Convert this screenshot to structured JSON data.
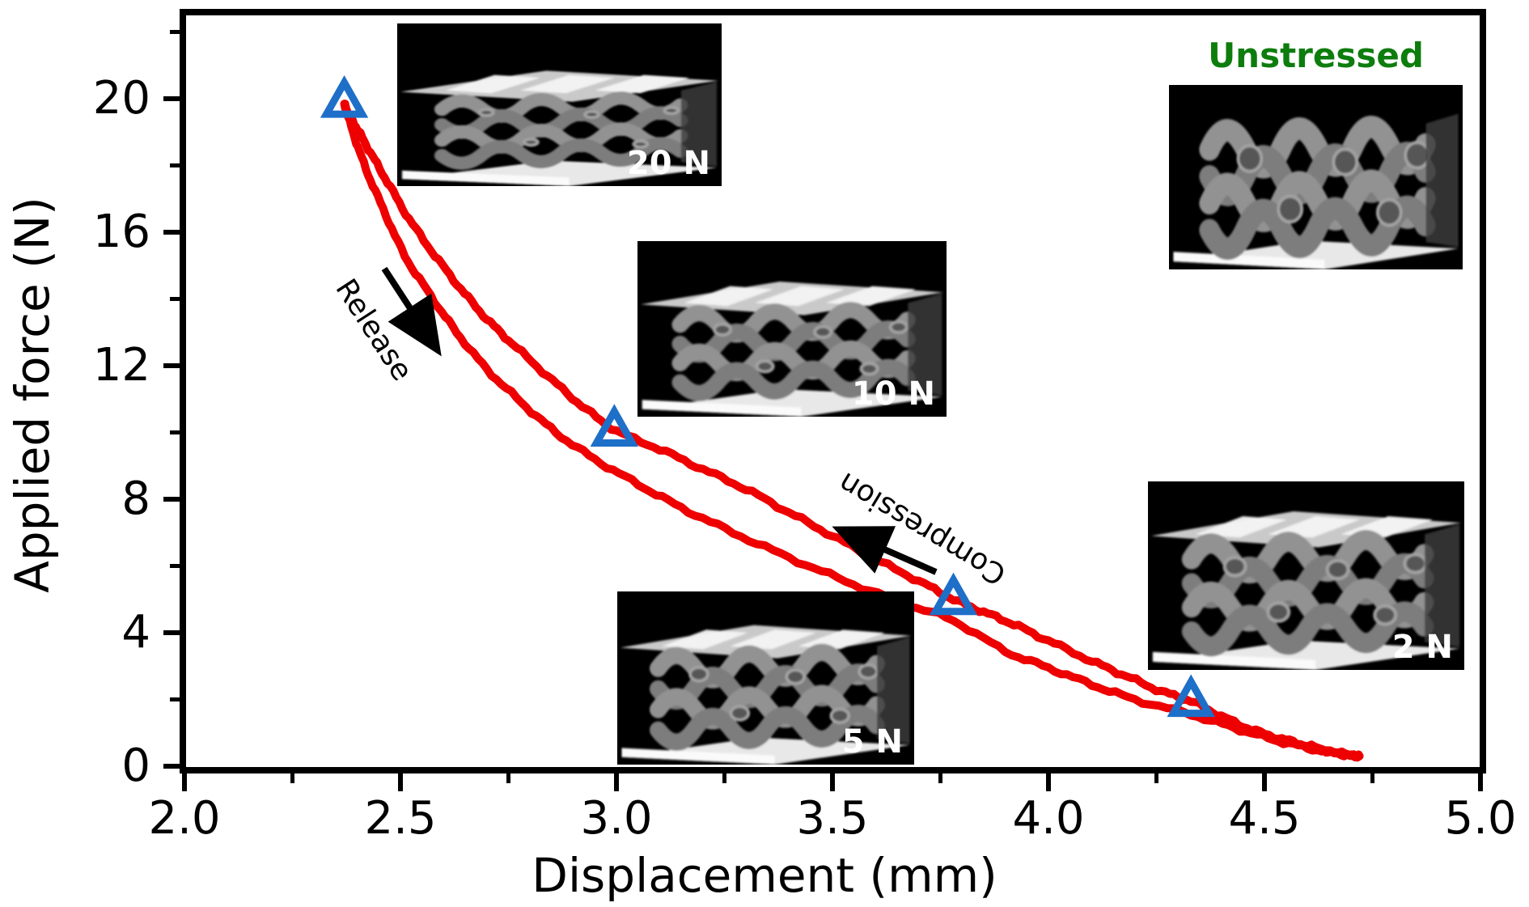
{
  "chart_data": {
    "type": "line",
    "title": "",
    "xlabel": "Displacement (mm)",
    "ylabel": "Applied force (N)",
    "xlim": [
      2.0,
      5.0
    ],
    "ylim": [
      0,
      22.6
    ],
    "grid": false,
    "x_ticks": [
      2.0,
      2.5,
      3.0,
      3.5,
      4.0,
      4.5,
      5.0
    ],
    "x_tick_labels": [
      "2.0",
      "2.5",
      "3.0",
      "3.5",
      "4.0",
      "4.5",
      "5.0"
    ],
    "x_minor_ticks": [
      2.25,
      2.75,
      3.25,
      3.75,
      4.25,
      4.75
    ],
    "y_ticks": [
      0,
      4,
      8,
      12,
      16,
      20
    ],
    "y_tick_labels": [
      "0",
      "4",
      "8",
      "12",
      "16",
      "20"
    ],
    "y_minor_ticks": [
      2,
      6,
      10,
      14,
      18,
      22
    ],
    "line_color": "#ee0000",
    "series": [
      {
        "name": "Compression",
        "points": [
          [
            4.72,
            0.3
          ],
          [
            4.66,
            0.42
          ],
          [
            4.6,
            0.62
          ],
          [
            4.54,
            0.82
          ],
          [
            4.47,
            1.1
          ],
          [
            4.4,
            1.5
          ],
          [
            4.33,
            1.95
          ],
          [
            4.26,
            2.25
          ],
          [
            4.18,
            2.7
          ],
          [
            4.1,
            3.15
          ],
          [
            4.0,
            3.76
          ],
          [
            3.92,
            4.25
          ],
          [
            3.85,
            4.62
          ],
          [
            3.78,
            5.0
          ],
          [
            3.7,
            5.55
          ],
          [
            3.6,
            6.2
          ],
          [
            3.5,
            6.9
          ],
          [
            3.4,
            7.6
          ],
          [
            3.3,
            8.3
          ],
          [
            3.2,
            8.9
          ],
          [
            3.1,
            9.5
          ],
          [
            3.0,
            10.05
          ],
          [
            2.92,
            10.8
          ],
          [
            2.84,
            11.7
          ],
          [
            2.76,
            12.65
          ],
          [
            2.7,
            13.4
          ],
          [
            2.64,
            14.3
          ],
          [
            2.58,
            15.3
          ],
          [
            2.52,
            16.4
          ],
          [
            2.47,
            17.5
          ],
          [
            2.43,
            18.4
          ],
          [
            2.4,
            19.1
          ],
          [
            2.38,
            19.55
          ],
          [
            2.37,
            19.85
          ]
        ]
      },
      {
        "name": "Release",
        "points": [
          [
            2.37,
            19.85
          ],
          [
            2.39,
            19.0
          ],
          [
            2.42,
            17.9
          ],
          [
            2.46,
            16.7
          ],
          [
            2.51,
            15.3
          ],
          [
            2.57,
            14.1
          ],
          [
            2.63,
            13.0
          ],
          [
            2.7,
            11.9
          ],
          [
            2.78,
            10.9
          ],
          [
            2.86,
            10.0
          ],
          [
            2.95,
            9.2
          ],
          [
            3.05,
            8.45
          ],
          [
            3.15,
            7.75
          ],
          [
            3.27,
            7.0
          ],
          [
            3.4,
            6.25
          ],
          [
            3.53,
            5.55
          ],
          [
            3.66,
            4.9
          ],
          [
            3.78,
            4.36
          ],
          [
            3.9,
            3.45
          ],
          [
            4.0,
            2.95
          ],
          [
            4.1,
            2.45
          ],
          [
            4.2,
            2.0
          ],
          [
            4.33,
            1.55
          ],
          [
            4.43,
            1.15
          ],
          [
            4.52,
            0.8
          ],
          [
            4.6,
            0.55
          ],
          [
            4.67,
            0.38
          ],
          [
            4.71,
            0.31
          ],
          [
            4.72,
            0.3
          ]
        ]
      }
    ],
    "markers": {
      "symbol": "open-triangle",
      "color": "#1e6fc8",
      "points": [
        [
          2.37,
          19.9
        ],
        [
          2.995,
          10.05
        ],
        [
          3.78,
          5.0
        ],
        [
          4.33,
          1.95
        ]
      ]
    },
    "annotations": [
      {
        "text": "Release",
        "arrow_direction": "down-right"
      },
      {
        "text": "Compression",
        "arrow_direction": "up-left"
      }
    ],
    "insets": [
      {
        "label": "20 N",
        "label_color": "#ffffff",
        "state": "compressed-20N"
      },
      {
        "label": "10 N",
        "label_color": "#ffffff",
        "state": "compressed-10N"
      },
      {
        "label": "5 N",
        "label_color": "#ffffff",
        "state": "compressed-5N"
      },
      {
        "label": "2 N",
        "label_color": "#ffffff",
        "state": "compressed-2N"
      },
      {
        "label": "Unstressed",
        "label_color": "#0d7d0d",
        "state": "unstressed"
      }
    ]
  }
}
